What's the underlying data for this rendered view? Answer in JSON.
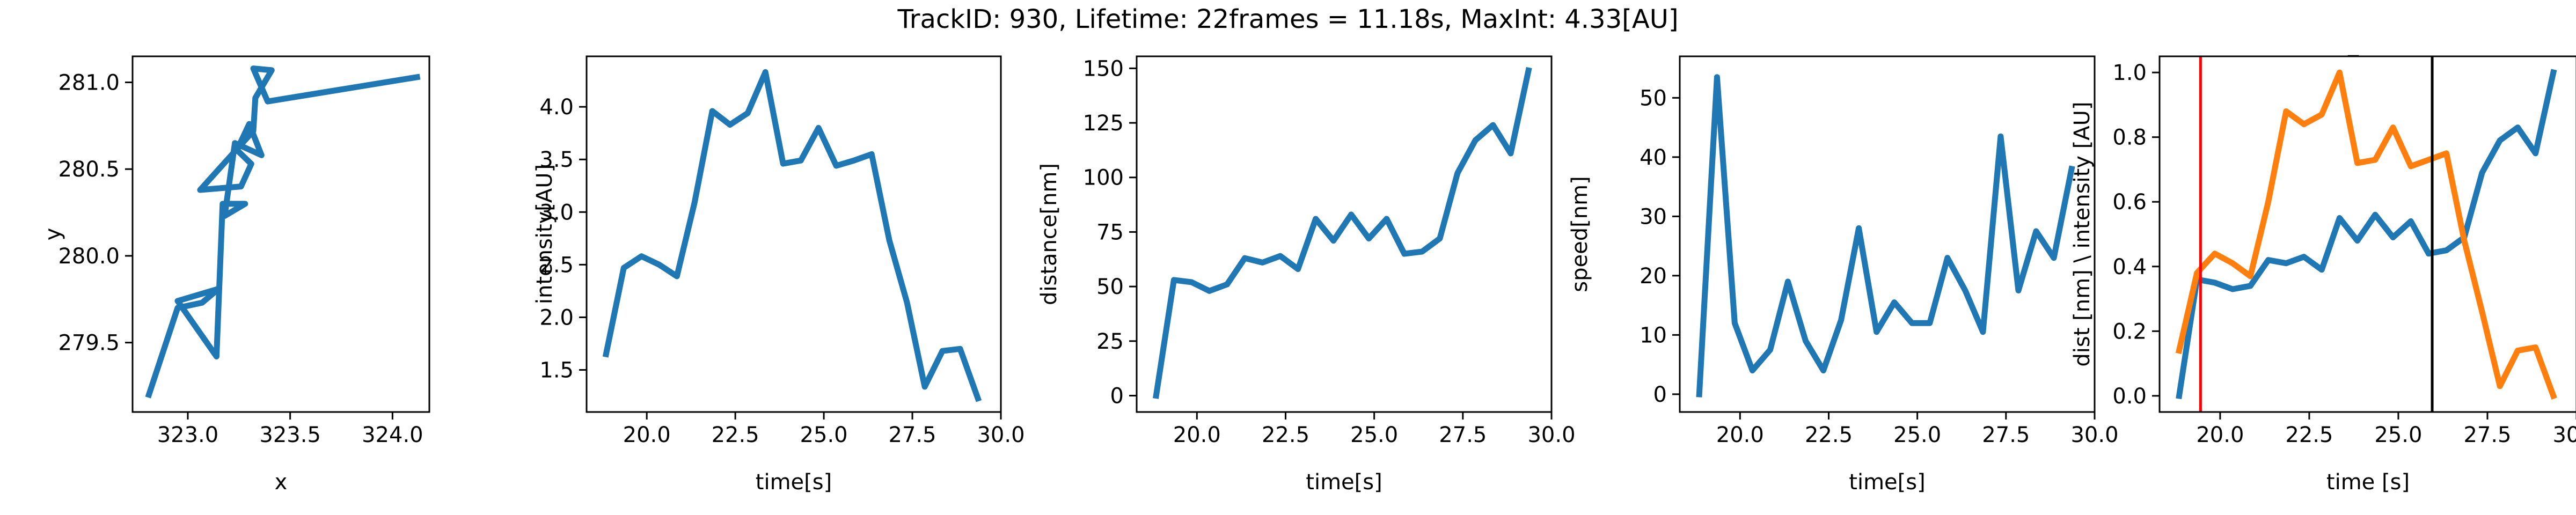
{
  "figure": {
    "title": "TrackID: 930, Lifetime: 22frames = 11.18s, MaxInt: 4.33[AU]"
  },
  "style": {
    "series_colors": [
      "#1f77b4",
      "#ff7f0e"
    ],
    "marker_colors": [
      "#ff0000",
      "#000000"
    ],
    "axis_color": "#000000"
  },
  "chart_data": [
    {
      "type": "line",
      "title": "",
      "xlabel": "x",
      "ylabel": "y",
      "xlim": [
        322.73,
        324.18
      ],
      "ylim": [
        279.1,
        281.15
      ],
      "xticks": [
        323.0,
        323.5,
        324.0
      ],
      "xtick_labels": [
        "323.0",
        "323.5",
        "324.0"
      ],
      "yticks": [
        279.5,
        280.0,
        280.5,
        281.0
      ],
      "ytick_labels": [
        "279.5",
        "280.0",
        "280.5",
        "281.0"
      ],
      "series": [
        {
          "x": [
            322.81,
            322.95,
            323.07,
            323.15,
            322.95,
            323.14,
            323.17,
            323.28,
            323.18,
            323.23,
            323.36,
            323.3,
            323.24,
            323.31,
            323.26,
            323.06,
            323.32,
            323.33,
            323.41,
            323.32,
            323.39,
            324.12
          ],
          "y": [
            279.2,
            279.7,
            279.73,
            279.81,
            279.74,
            279.42,
            280.3,
            280.3,
            280.23,
            280.65,
            280.58,
            280.76,
            280.61,
            280.53,
            280.4,
            280.38,
            280.72,
            280.91,
            281.07,
            281.08,
            280.89,
            281.03
          ]
        }
      ]
    },
    {
      "type": "line",
      "title": "",
      "xlabel": "time[s]",
      "ylabel": "intensity[AU]",
      "xlim": [
        18.3,
        30.0
      ],
      "ylim": [
        1.1,
        4.48
      ],
      "xticks": [
        20.0,
        22.5,
        25.0,
        27.5,
        30.0
      ],
      "xtick_labels": [
        "20.0",
        "22.5",
        "25.0",
        "27.5",
        "30.0"
      ],
      "yticks": [
        1.5,
        2.0,
        2.5,
        3.0,
        3.5,
        4.0
      ],
      "ytick_labels": [
        "1.5",
        "2.0",
        "2.5",
        "3.0",
        "3.5",
        "4.0"
      ],
      "series": [
        {
          "x": [
            18.85,
            19.35,
            19.85,
            20.35,
            20.85,
            21.35,
            21.85,
            22.35,
            22.85,
            23.35,
            23.85,
            24.35,
            24.85,
            25.35,
            25.85,
            26.35,
            26.85,
            27.35,
            27.85,
            28.35,
            28.85,
            29.35
          ],
          "y": [
            1.65,
            2.47,
            2.58,
            2.5,
            2.39,
            3.09,
            3.96,
            3.83,
            3.94,
            4.33,
            3.46,
            3.49,
            3.8,
            3.44,
            3.49,
            3.55,
            2.73,
            2.14,
            1.34,
            1.68,
            1.7,
            1.23
          ]
        }
      ]
    },
    {
      "type": "line",
      "title": "",
      "xlabel": "time[s]",
      "ylabel": "distance[nm]",
      "xlim": [
        18.3,
        30.0
      ],
      "ylim": [
        -7.5,
        155.5
      ],
      "xticks": [
        20.0,
        22.5,
        25.0,
        27.5,
        30.0
      ],
      "xtick_labels": [
        "20.0",
        "22.5",
        "25.0",
        "27.5",
        "30.0"
      ],
      "yticks": [
        0,
        25,
        50,
        75,
        100,
        125,
        150
      ],
      "ytick_labels": [
        "0",
        "25",
        "50",
        "75",
        "100",
        "125",
        "150"
      ],
      "series": [
        {
          "x": [
            18.85,
            19.35,
            19.85,
            20.35,
            20.85,
            21.35,
            21.85,
            22.35,
            22.85,
            23.35,
            23.85,
            24.35,
            24.85,
            25.35,
            25.85,
            26.35,
            26.85,
            27.35,
            27.85,
            28.35,
            28.85,
            29.35
          ],
          "y": [
            0,
            53,
            52,
            48,
            51,
            63,
            61,
            64,
            58,
            81,
            71,
            83,
            72,
            81,
            65,
            66,
            72,
            102,
            117,
            124,
            111,
            149
          ]
        }
      ]
    },
    {
      "type": "line",
      "title": "",
      "xlabel": "time[s]",
      "ylabel": "speed[nm]",
      "xlim": [
        18.3,
        30.0
      ],
      "ylim": [
        -3.0,
        57.0
      ],
      "xticks": [
        20.0,
        22.5,
        25.0,
        27.5,
        30.0
      ],
      "xtick_labels": [
        "20.0",
        "22.5",
        "25.0",
        "27.5",
        "30.0"
      ],
      "yticks": [
        0,
        10,
        20,
        30,
        40,
        50
      ],
      "ytick_labels": [
        "0",
        "10",
        "20",
        "30",
        "40",
        "50"
      ],
      "series": [
        {
          "x": [
            18.85,
            19.35,
            19.85,
            20.35,
            20.85,
            21.35,
            21.85,
            22.35,
            22.85,
            23.35,
            23.85,
            24.35,
            24.85,
            25.35,
            25.85,
            26.35,
            26.85,
            27.35,
            27.85,
            28.35,
            28.85,
            29.35
          ],
          "y": [
            0,
            53.5,
            12,
            4,
            7.5,
            19,
            9,
            4,
            12.5,
            28,
            10.5,
            15.5,
            12,
            12,
            23,
            17.5,
            10.5,
            43.5,
            17.5,
            27.5,
            23,
            38
          ]
        }
      ]
    },
    {
      "type": "line",
      "title": "_",
      "xlabel": "time [s]",
      "ylabel": "dist [nm] \\ intensity [AU]",
      "xlim": [
        18.3,
        30.0
      ],
      "ylim": [
        -0.05,
        1.05
      ],
      "xticks": [
        20.0,
        22.5,
        25.0,
        27.5,
        30.0
      ],
      "xtick_labels": [
        "20.0",
        "22.5",
        "25.0",
        "27.5",
        "30.0"
      ],
      "yticks": [
        0.0,
        0.2,
        0.4,
        0.6,
        0.8,
        1.0
      ],
      "ytick_labels": [
        "0.0",
        "0.2",
        "0.4",
        "0.6",
        "0.8",
        "1.0"
      ],
      "vlines": [
        {
          "x": 19.45,
          "color": "#ff0000"
        },
        {
          "x": 25.95,
          "color": "#000000"
        }
      ],
      "series": [
        {
          "x": [
            18.85,
            19.35,
            19.85,
            20.35,
            20.85,
            21.35,
            21.85,
            22.35,
            22.85,
            23.35,
            23.85,
            24.35,
            24.85,
            25.35,
            25.85,
            26.35,
            26.85,
            27.35,
            27.85,
            28.35,
            28.85,
            29.35
          ],
          "y": [
            0.0,
            0.36,
            0.35,
            0.33,
            0.34,
            0.42,
            0.41,
            0.43,
            0.39,
            0.55,
            0.48,
            0.56,
            0.49,
            0.54,
            0.44,
            0.45,
            0.49,
            0.69,
            0.79,
            0.83,
            0.75,
            1.0
          ],
          "color": "#1f77b4"
        },
        {
          "x": [
            18.85,
            19.35,
            19.85,
            20.35,
            20.85,
            21.35,
            21.85,
            22.35,
            22.85,
            23.35,
            23.85,
            24.35,
            24.85,
            25.35,
            25.85,
            26.35,
            26.85,
            27.35,
            27.85,
            28.35,
            28.85,
            29.35
          ],
          "y": [
            0.14,
            0.38,
            0.44,
            0.41,
            0.37,
            0.6,
            0.88,
            0.84,
            0.87,
            1.0,
            0.72,
            0.73,
            0.83,
            0.71,
            0.73,
            0.75,
            0.48,
            0.26,
            0.03,
            0.14,
            0.15,
            0.0
          ],
          "color": "#ff7f0e"
        }
      ]
    }
  ]
}
